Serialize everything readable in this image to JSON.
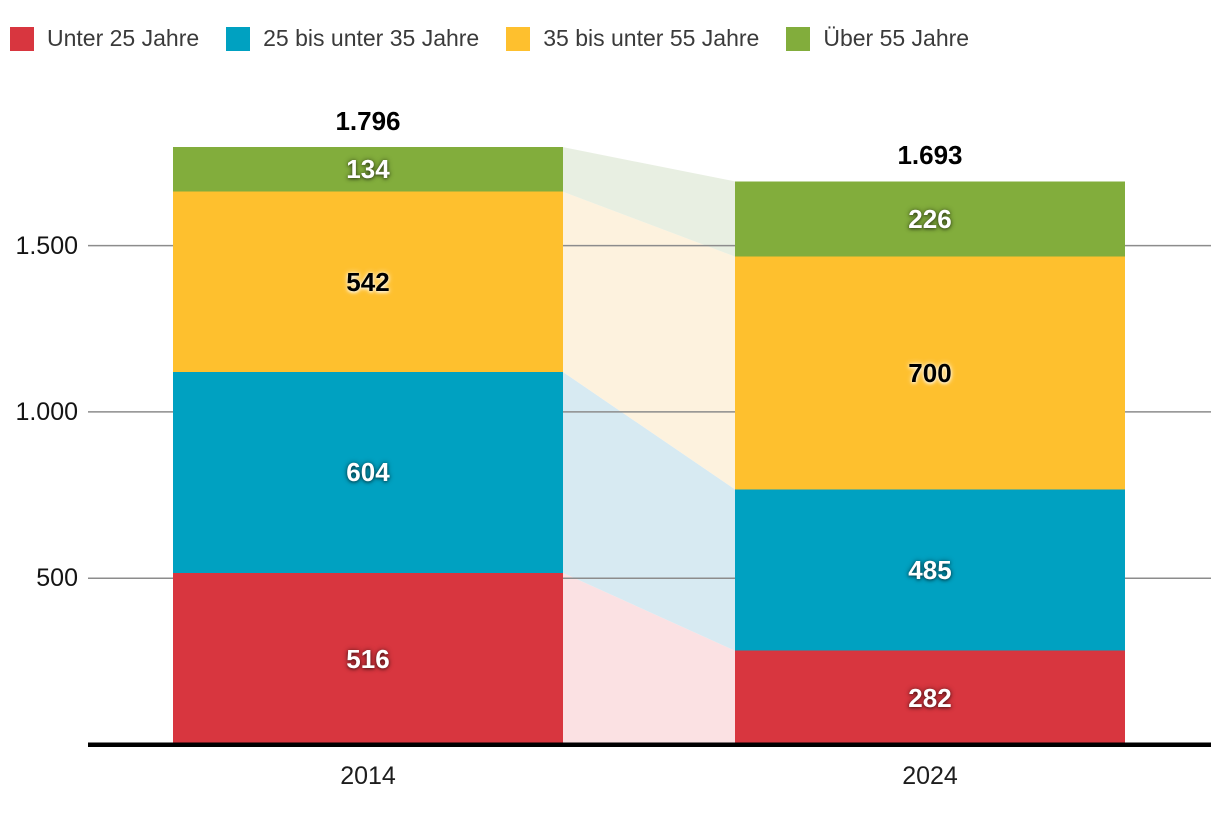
{
  "colors": {
    "axis_line": "#000000",
    "gridline": "#8c8c8c",
    "legend_text": "#3a3a3a",
    "tick_text": "#141414",
    "total_text": "#000000"
  },
  "chart_data": {
    "type": "bar",
    "stacked": true,
    "orientation": "vertical",
    "categories": [
      "2014",
      "2024"
    ],
    "series": [
      {
        "name": "Unter 25 Jahre",
        "color": "#d8363f",
        "band_color": "#fbe1e3",
        "value_label_color": "light",
        "values": [
          516,
          282
        ]
      },
      {
        "name": "25 bis unter 35 Jahre",
        "color": "#00a1c1",
        "band_color": "#d7eaf2",
        "value_label_color": "light",
        "values": [
          604,
          485
        ]
      },
      {
        "name": "35 bis unter 55 Jahre",
        "color": "#fec02e",
        "band_color": "#fdf2de",
        "value_label_color": "dark",
        "values": [
          542,
          700
        ]
      },
      {
        "name": "Über 55 Jahre",
        "color": "#82ad3c",
        "band_color": "#e8efe2",
        "value_label_color": "light",
        "values": [
          134,
          226
        ]
      }
    ],
    "totals": [
      {
        "value": 1796,
        "label": "1.796"
      },
      {
        "value": 1693,
        "label": "1.693"
      }
    ],
    "y_ticks": [
      {
        "value": 500,
        "label": "500"
      },
      {
        "value": 1000,
        "label": "1.000"
      },
      {
        "value": 1500,
        "label": "1.500"
      }
    ],
    "ylim": [
      0,
      1796
    ],
    "grid": true,
    "legend_position": "top",
    "flow_bands": true
  }
}
